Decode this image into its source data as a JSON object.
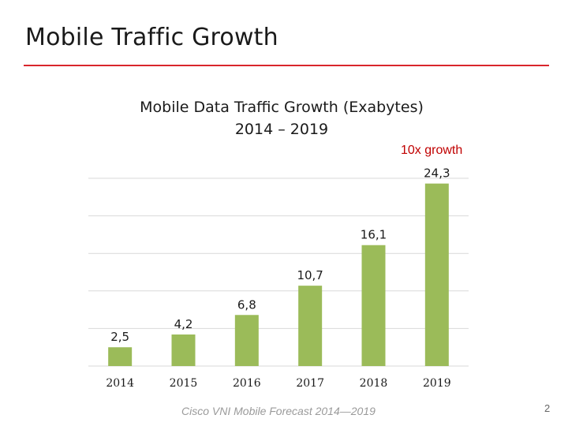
{
  "slide": {
    "title": "Mobile Traffic Growth",
    "source": "Cisco VNI Mobile Forecast 2014—2019",
    "page_number": "2",
    "accent_color": "#d9262c"
  },
  "chart_data": {
    "type": "bar",
    "title_line1": "Mobile Data Traffic Growth (Exabytes)",
    "title_line2": "2014 – 2019",
    "annotation": "10x growth",
    "annotation_color": "#c00000",
    "categories": [
      "2014",
      "2015",
      "2016",
      "2017",
      "2018",
      "2019"
    ],
    "values": [
      2.5,
      4.2,
      6.8,
      10.7,
      16.1,
      24.3
    ],
    "data_labels": [
      "2,5",
      "4,2",
      "6,8",
      "10,7",
      "16,1",
      "24,3"
    ],
    "bar_color": "#9bbb59",
    "grid": true,
    "ylim": [
      0,
      25
    ]
  }
}
